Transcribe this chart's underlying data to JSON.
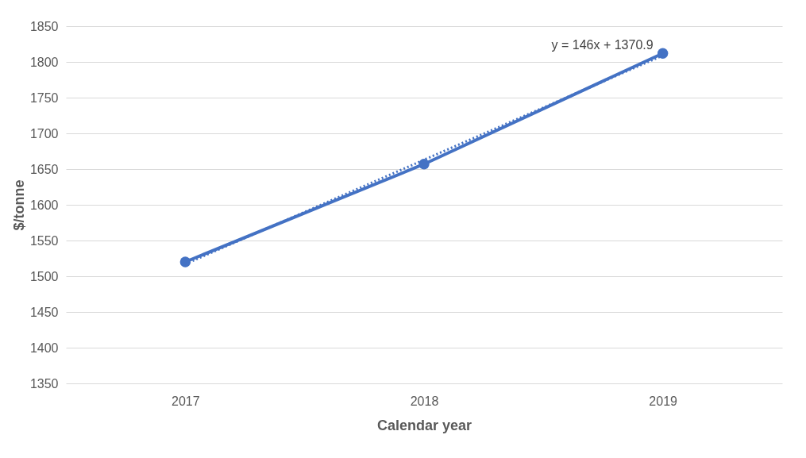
{
  "chart_data": {
    "type": "line",
    "xlabel": "Calendar year",
    "ylabel": "$/tonne",
    "categories": [
      "2017",
      "2018",
      "2019"
    ],
    "series": [
      {
        "color": "#4472c4",
        "values": [
          1520,
          1657,
          1812
        ],
        "marker": "circle",
        "line_style": "solid"
      },
      {
        "type": "line",
        "color": "#4472c4",
        "values": [
          1517,
          1663,
          1809
        ],
        "marker": "none",
        "line_style": "dotted"
      }
    ],
    "ylim": [
      1350,
      1850
    ],
    "yticks": [
      1350,
      1400,
      1450,
      1500,
      1550,
      1600,
      1650,
      1700,
      1750,
      1800,
      1850
    ],
    "grid": "y",
    "annotations": [
      {
        "text": "y = 146x + 1370.9",
        "x": "2019",
        "y": 1812
      }
    ]
  }
}
